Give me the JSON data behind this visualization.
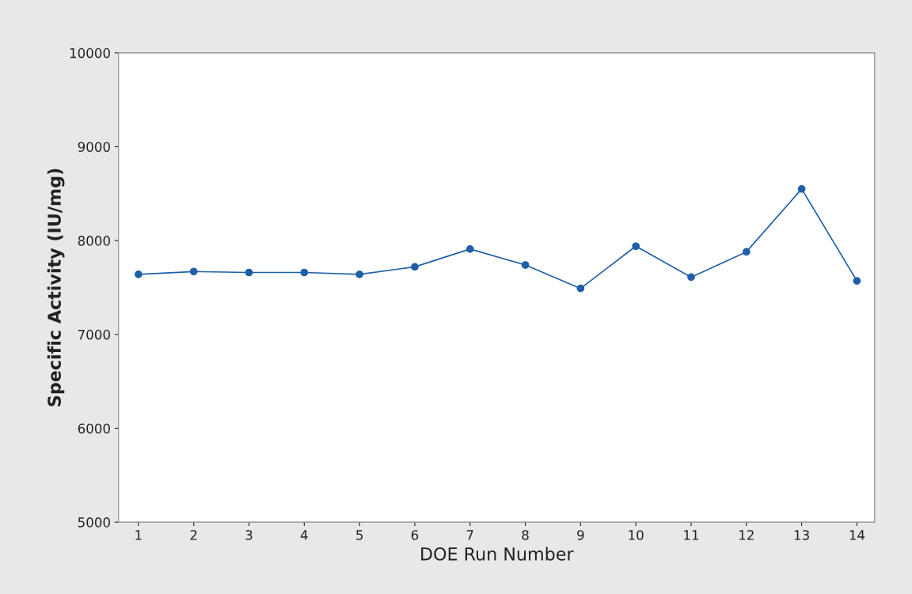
{
  "chart_data": {
    "type": "line",
    "xlabel": "DOE Run Number",
    "ylabel": "Specific Activity (IU/mg)",
    "x": [
      1,
      2,
      3,
      4,
      5,
      6,
      7,
      8,
      9,
      10,
      11,
      12,
      13,
      14
    ],
    "series": [
      {
        "color": "#1f5fa8",
        "values": [
          7640,
          7670,
          7660,
          7660,
          7640,
          7720,
          7910,
          7740,
          7490,
          7940,
          7610,
          7880,
          8550,
          7570
        ]
      }
    ],
    "xlim": [
      0.64,
      14.32
    ],
    "xticks": [
      1,
      2,
      3,
      4,
      5,
      6,
      7,
      8,
      9,
      10,
      11,
      12,
      13,
      14
    ],
    "ylim": [
      5000,
      10000
    ],
    "yticks": [
      5000,
      6000,
      7000,
      8000,
      9000,
      10000
    ],
    "marker": "circle",
    "line_style": "solid",
    "grid": false,
    "legend": false
  }
}
